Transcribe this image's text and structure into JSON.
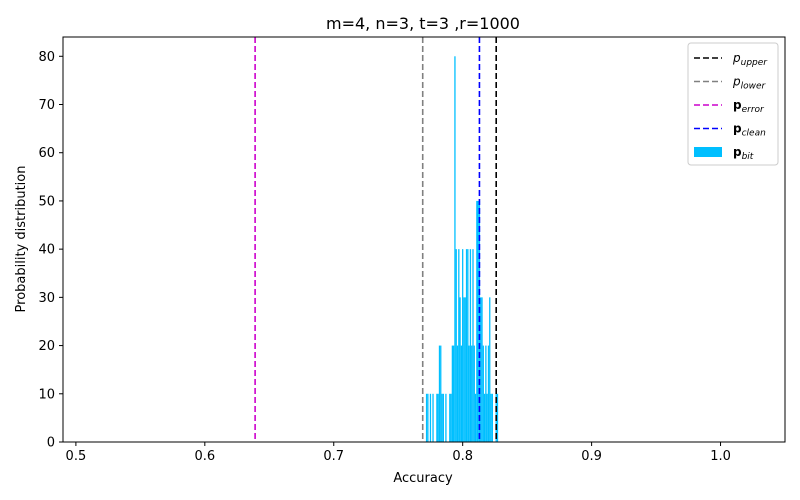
{
  "chart_data": {
    "type": "bar",
    "title": "m=4, n=3, t=3 ,r=1000",
    "xlabel": "Accuracy",
    "ylabel": "Probability distribution",
    "xlim": [
      0.49,
      1.05
    ],
    "ylim": [
      0,
      84
    ],
    "xticks": [
      0.5,
      0.6,
      0.7,
      0.8,
      0.9,
      1.0
    ],
    "xtick_labels": [
      "0.5",
      "0.6",
      "0.7",
      "0.8",
      "0.9",
      "1.0"
    ],
    "yticks": [
      0,
      10,
      20,
      30,
      40,
      50,
      60,
      70,
      80
    ],
    "ytick_labels": [
      "0",
      "10",
      "20",
      "30",
      "40",
      "50",
      "60",
      "70",
      "80"
    ],
    "grid": false,
    "legend_position": "top-right",
    "legend": [
      {
        "main": "p",
        "sub": "upper",
        "style": "italic",
        "color": "#000000",
        "kind": "dashed-line"
      },
      {
        "main": "p",
        "sub": "lower",
        "style": "italic",
        "color": "#808080",
        "kind": "dashed-line"
      },
      {
        "main": "p",
        "sub": "error",
        "style": "bold",
        "color": "#cc00cc",
        "kind": "dashed-line"
      },
      {
        "main": "p",
        "sub": "clean",
        "style": "bold",
        "color": "#0000ff",
        "kind": "dashed-line"
      },
      {
        "main": "p",
        "sub": "bit",
        "style": "bold",
        "color": "#00bfff",
        "kind": "patch"
      }
    ],
    "vlines": [
      {
        "name": "p_upper",
        "x": 0.826,
        "color": "#000000"
      },
      {
        "name": "p_lower",
        "x": 0.769,
        "color": "#808080"
      },
      {
        "name": "p_error",
        "x": 0.639,
        "color": "#cc00cc"
      },
      {
        "name": "p_clean",
        "x": 0.813,
        "color": "#0000ff"
      }
    ],
    "series": [
      {
        "color": "#00bfff",
        "bar_width": 0.001,
        "x": [
          0.772,
          0.773,
          0.775,
          0.777,
          0.78,
          0.781,
          0.782,
          0.783,
          0.784,
          0.785,
          0.787,
          0.79,
          0.791,
          0.792,
          0.793,
          0.794,
          0.795,
          0.796,
          0.797,
          0.798,
          0.799,
          0.8,
          0.801,
          0.802,
          0.803,
          0.804,
          0.805,
          0.806,
          0.807,
          0.808,
          0.809,
          0.81,
          0.811,
          0.812,
          0.813,
          0.814,
          0.815,
          0.816,
          0.817,
          0.818,
          0.819,
          0.82,
          0.821,
          0.822,
          0.823,
          0.826,
          0.827
        ],
        "values": [
          10,
          10,
          10,
          10,
          10,
          10,
          20,
          20,
          10,
          10,
          10,
          10,
          10,
          20,
          20,
          80,
          40,
          20,
          40,
          30,
          20,
          40,
          30,
          30,
          40,
          40,
          20,
          40,
          20,
          40,
          20,
          10,
          50,
          50,
          50,
          30,
          30,
          20,
          10,
          20,
          10,
          20,
          30,
          10,
          10,
          10,
          10
        ]
      }
    ]
  }
}
